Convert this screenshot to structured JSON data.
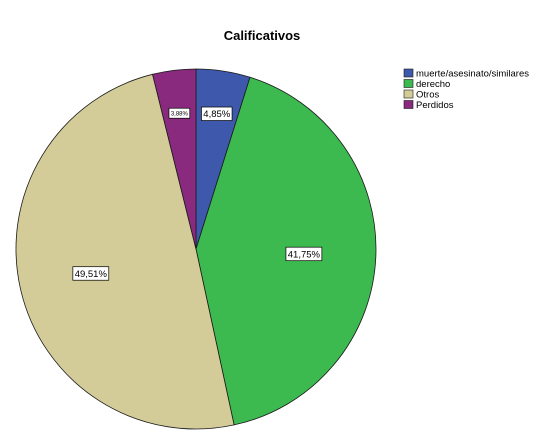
{
  "chart_data": {
    "type": "pie",
    "title": "Calificativos",
    "legend_position": "top-right",
    "slices": [
      {
        "label": "muerte/asesinato/similares",
        "value": 4.85,
        "display": "4,85%",
        "color": "#3e58ac"
      },
      {
        "label": "derecho",
        "value": 41.75,
        "display": "41,75%",
        "color": "#3dba4f"
      },
      {
        "label": "Otros",
        "value": 49.51,
        "display": "49,51%",
        "color": "#d4cc98"
      },
      {
        "label": "Perdidos",
        "value": 3.88,
        "display": "3,88%",
        "color": "#8a2a7e"
      }
    ]
  }
}
